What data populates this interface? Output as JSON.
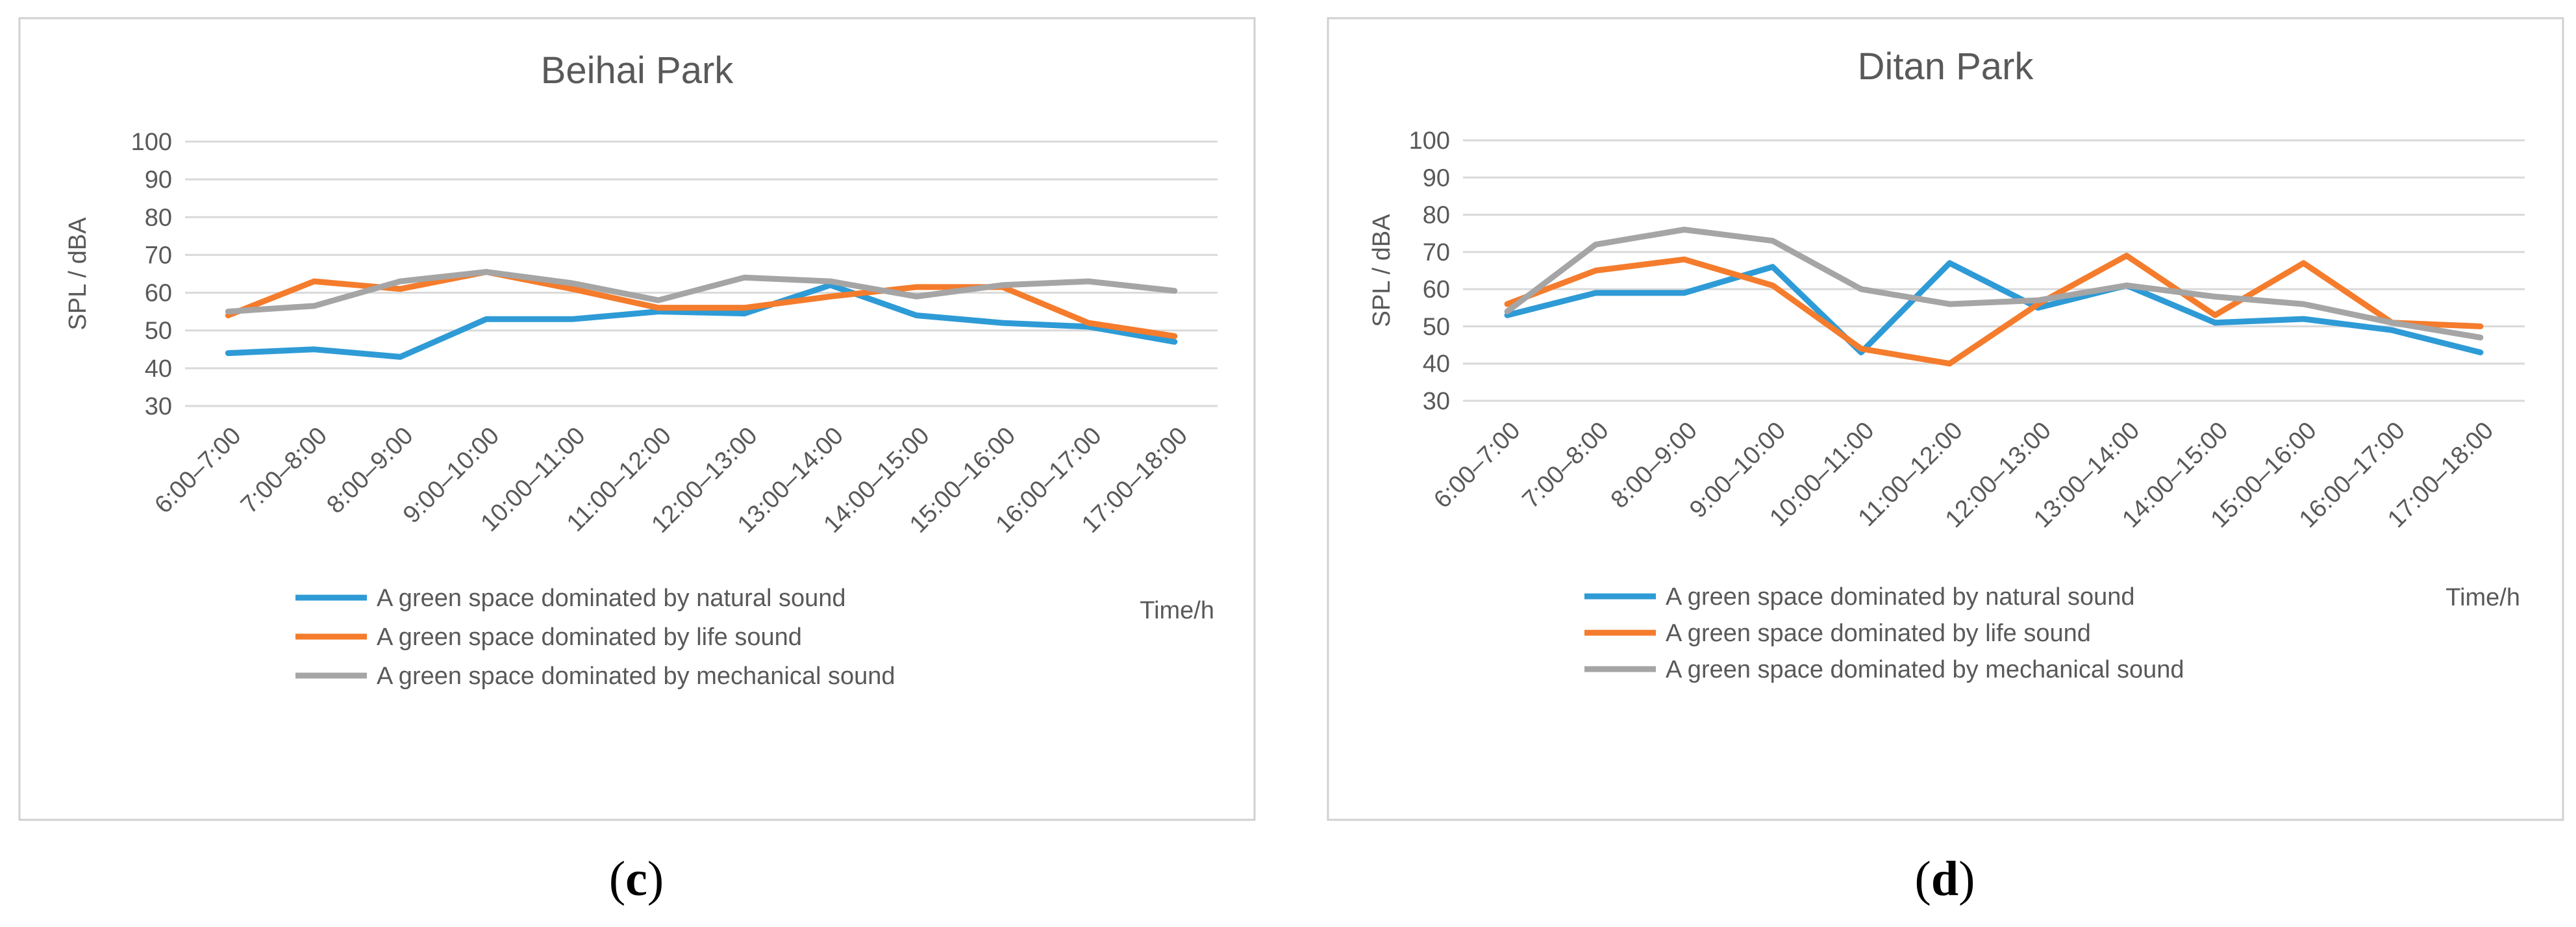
{
  "chart_data": [
    {
      "panel_label": "c",
      "type": "line",
      "title": "Beihai Park",
      "ylabel": "SPL / dBA",
      "xlabel": "Time/h",
      "ylim": [
        30,
        100
      ],
      "yticks": [
        30,
        40,
        50,
        60,
        70,
        80,
        90,
        100
      ],
      "grid": true,
      "legend_position": "bottom",
      "categories": [
        "6:00–7:00",
        "7:00–8:00",
        "8:00–9:00",
        "9:00–10:00",
        "10:00–11:00",
        "11:00–12:00",
        "12:00–13:00",
        "13:00–14:00",
        "14:00–15:00",
        "15:00–16:00",
        "16:00–17:00",
        "17:00–18:00"
      ],
      "series": [
        {
          "name": "A green space dominated by natural sound",
          "color": "#2e9bd6",
          "values": [
            44,
            45,
            43,
            53,
            53,
            55,
            54.5,
            62,
            54,
            52,
            51,
            47
          ]
        },
        {
          "name": "A green space dominated by life sound",
          "color": "#f47c2c",
          "values": [
            54,
            63,
            61,
            65.5,
            61,
            56,
            56,
            59,
            61.5,
            61.5,
            52,
            48.5
          ]
        },
        {
          "name": "A green space dominated by mechanical sound",
          "color": "#a5a5a5",
          "values": [
            55,
            56.5,
            63,
            65.5,
            62.5,
            58,
            64,
            63,
            59,
            62,
            63,
            60.5
          ]
        }
      ]
    },
    {
      "panel_label": "d",
      "type": "line",
      "title": "Ditan Park",
      "ylabel": "SPL / dBA",
      "xlabel": "Time/h",
      "ylim": [
        30,
        100
      ],
      "yticks": [
        30,
        40,
        50,
        60,
        70,
        80,
        90,
        100
      ],
      "grid": true,
      "legend_position": "bottom",
      "categories": [
        "6:00–7:00",
        "7:00–8:00",
        "8:00–9:00",
        "9:00–10:00",
        "10:00–11:00",
        "11:00–12:00",
        "12:00–13:00",
        "13:00–14:00",
        "14:00–15:00",
        "15:00–16:00",
        "16:00–17:00",
        "17:00–18:00"
      ],
      "series": [
        {
          "name": "A green space dominated by natural sound",
          "color": "#2e9bd6",
          "values": [
            53,
            59,
            59,
            66,
            43,
            67,
            55,
            61,
            51,
            52,
            49,
            43
          ]
        },
        {
          "name": "A green space dominated by life sound",
          "color": "#f47c2c",
          "values": [
            56,
            65,
            68,
            61,
            44,
            40,
            56,
            69,
            53,
            67,
            51,
            50
          ]
        },
        {
          "name": "A green space dominated by mechanical sound",
          "color": "#a5a5a5",
          "values": [
            54,
            72,
            76,
            73,
            60,
            56,
            57,
            61,
            58,
            56,
            51,
            47
          ]
        }
      ]
    }
  ]
}
